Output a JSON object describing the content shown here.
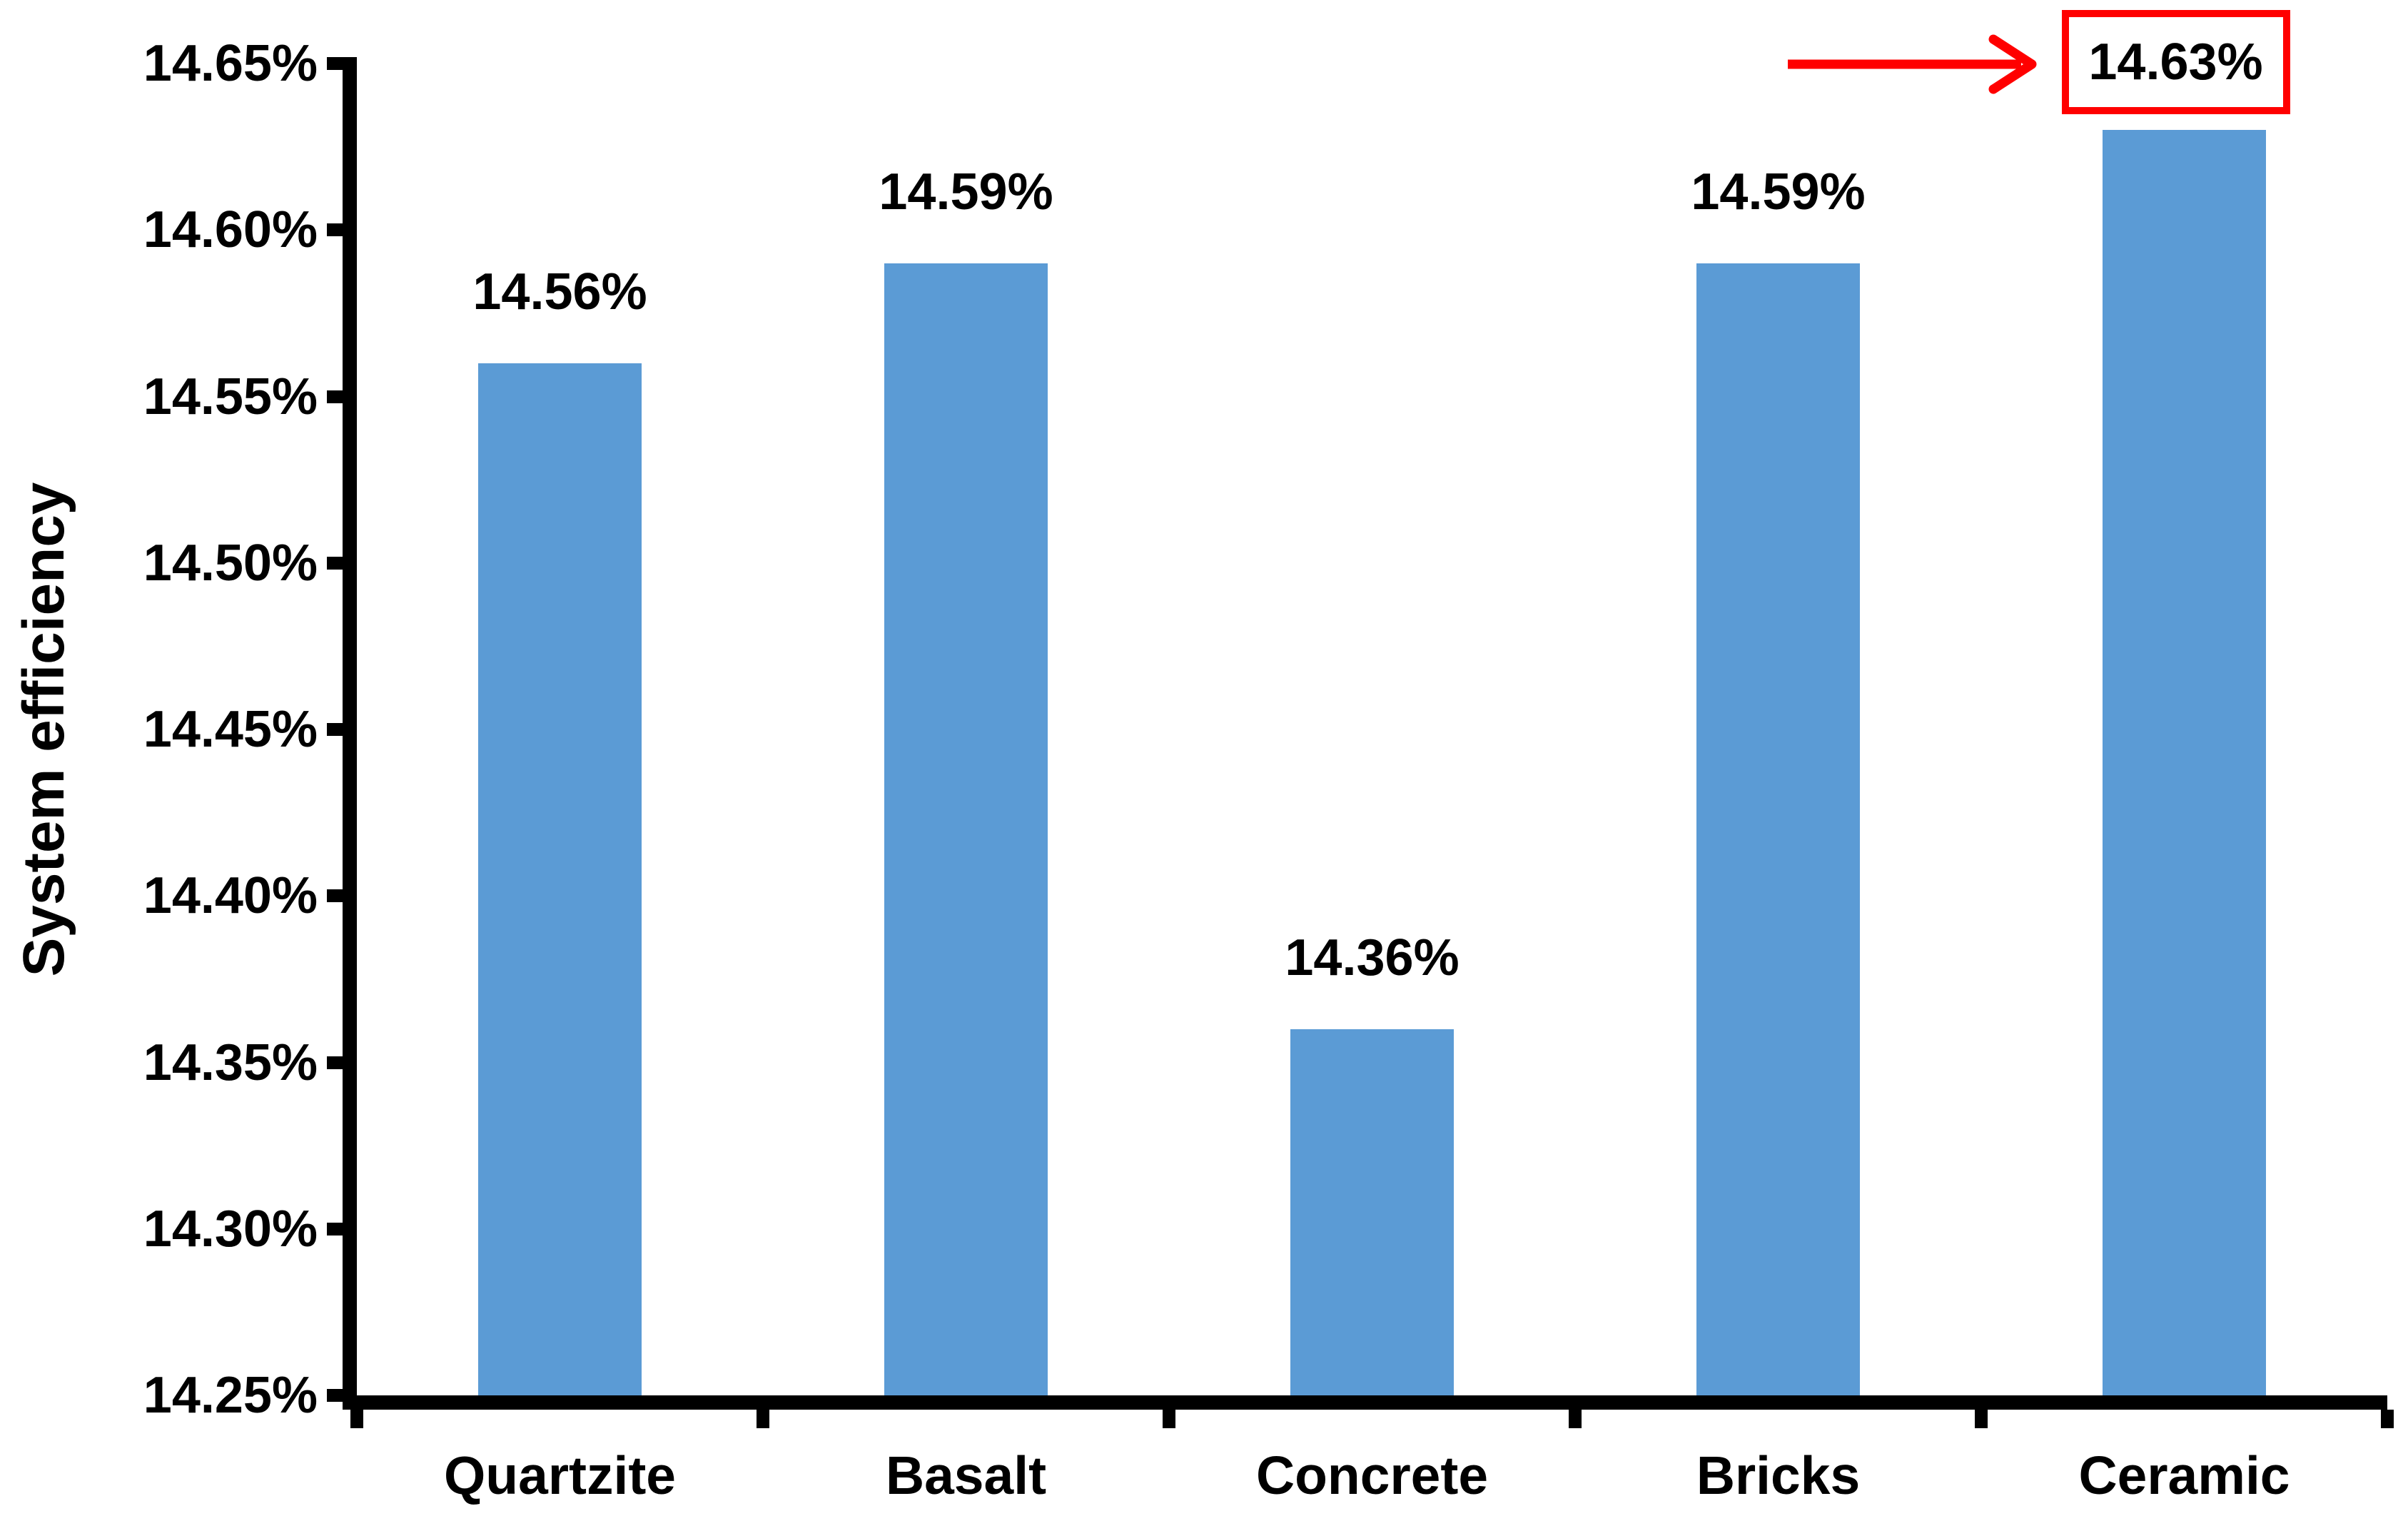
{
  "chart_data": {
    "type": "bar",
    "title": "",
    "categories": [
      "Quartzite",
      "Basalt",
      "Concrete",
      "Bricks",
      "Ceramic"
    ],
    "values": [
      14.56,
      14.59,
      14.36,
      14.59,
      14.63
    ],
    "data_labels": [
      "14.56%",
      "14.59%",
      "14.36%",
      "14.59%",
      "14.63%"
    ],
    "xlabel": "",
    "ylabel": "System efficiency",
    "ylim": [
      14.25,
      14.65
    ],
    "yticks": [
      {
        "value": 14.65,
        "label": "14.65%"
      },
      {
        "value": 14.6,
        "label": "14.60%"
      },
      {
        "value": 14.55,
        "label": "14.55%"
      },
      {
        "value": 14.5,
        "label": "14.50%"
      },
      {
        "value": 14.45,
        "label": "14.45%"
      },
      {
        "value": 14.4,
        "label": "14.40%"
      },
      {
        "value": 14.35,
        "label": "14.35%"
      },
      {
        "value": 14.3,
        "label": "14.30%"
      },
      {
        "value": 14.25,
        "label": "14.25%"
      }
    ],
    "grid": false,
    "legend": false,
    "bar_color": "#5B9BD5",
    "axis_color": "#000000",
    "highlight": {
      "index": 4,
      "label": "14.63%",
      "color": "#FF0000",
      "style": "red box around data label with red arrow pointing at it"
    }
  }
}
